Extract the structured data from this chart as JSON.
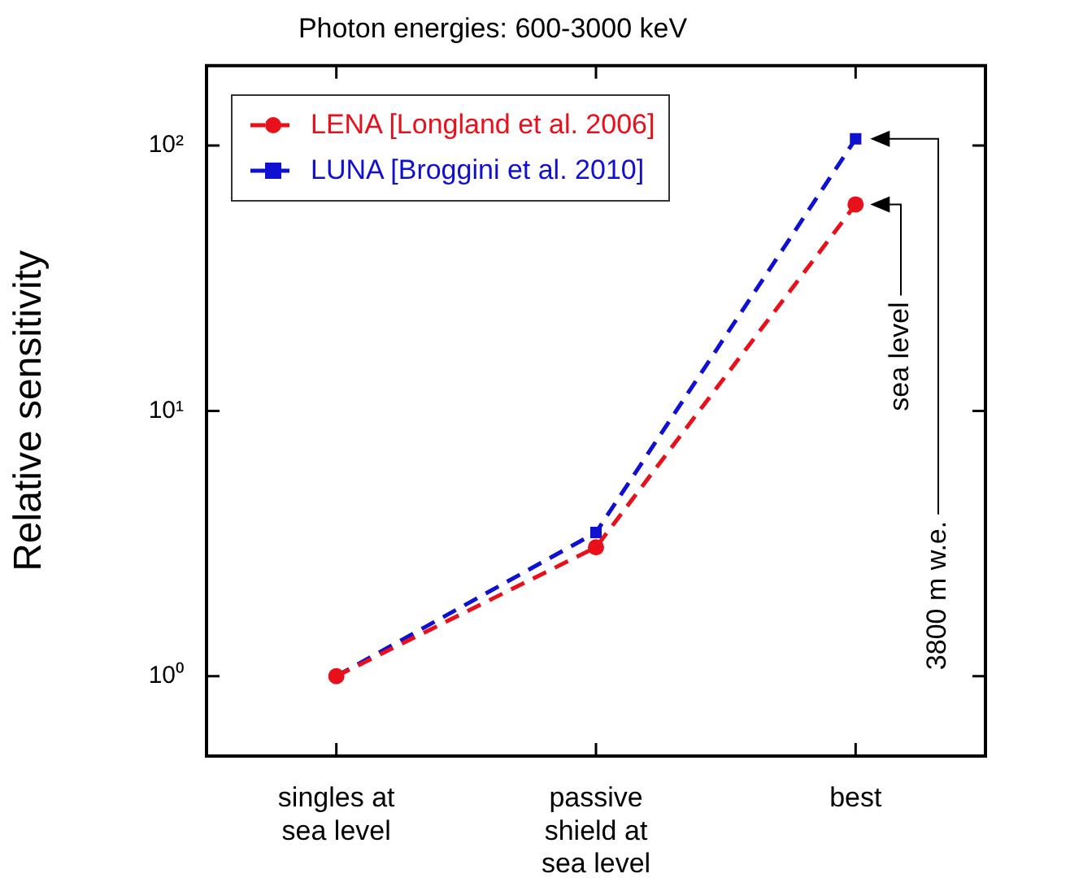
{
  "chart_data": {
    "type": "line",
    "title": "Photon energies: 600-3000 keV",
    "ylabel": "Relative sensitivity",
    "categories": [
      "singles at\nsea level",
      "passive\nshield at\nsea level",
      "best"
    ],
    "series": [
      {
        "name": "LENA [Longland et al. 2006]",
        "color": "#e8101a",
        "marker": "circle",
        "values": [
          1,
          3.06,
          60
        ]
      },
      {
        "name": "LUNA [Broggini et al. 2010]",
        "color": "#1010d0",
        "marker": "square",
        "values": [
          1,
          3.48,
          106
        ]
      }
    ],
    "log": true,
    "ylim": [
      0.5,
      200
    ],
    "yticks": [
      {
        "value": 1,
        "label": "10⁰"
      },
      {
        "value": 10,
        "label": "10¹"
      },
      {
        "value": 100,
        "label": "10²"
      }
    ],
    "grid": false,
    "legend": "top left",
    "line_style": "dashed",
    "annotations": [
      "sea level",
      "3800 m w.e."
    ]
  }
}
